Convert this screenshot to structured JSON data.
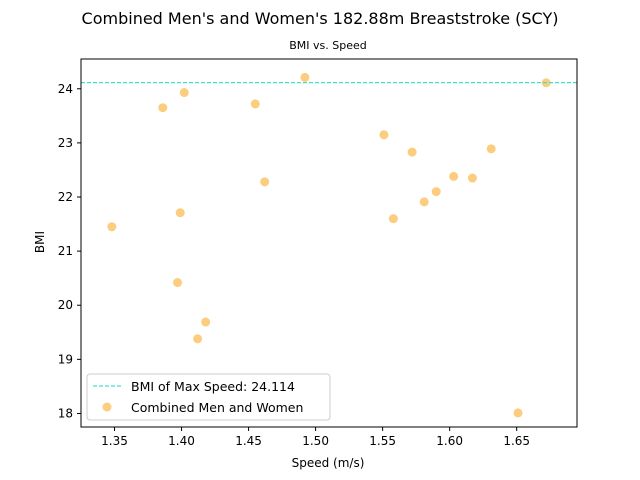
{
  "chart_data": {
    "type": "scatter",
    "title": "Combined Men's and Women's 182.88m Breaststroke (SCY)",
    "subtitle": "BMI vs. Speed",
    "xlabel": "Speed (m/s)",
    "ylabel": "BMI",
    "xlim": [
      1.325,
      1.695
    ],
    "ylim": [
      17.75,
      24.55
    ],
    "xticks": [
      "1.35",
      "1.40",
      "1.45",
      "1.50",
      "1.55",
      "1.60",
      "1.65"
    ],
    "yticks": [
      "18",
      "19",
      "20",
      "21",
      "22",
      "23",
      "24"
    ],
    "grid": false,
    "legend_position": "lower-left",
    "reference_line": {
      "name": "BMI of Max Speed: 24.114",
      "y": 24.114,
      "color": "#40e0d0",
      "style": "dashed"
    },
    "series": [
      {
        "name": "Combined Men and Women",
        "color": "#fbc15e",
        "points": [
          {
            "x": 1.348,
            "y": 21.45
          },
          {
            "x": 1.386,
            "y": 23.65
          },
          {
            "x": 1.397,
            "y": 20.42
          },
          {
            "x": 1.399,
            "y": 21.71
          },
          {
            "x": 1.402,
            "y": 23.93
          },
          {
            "x": 1.412,
            "y": 19.38
          },
          {
            "x": 1.418,
            "y": 19.69
          },
          {
            "x": 1.455,
            "y": 23.72
          },
          {
            "x": 1.462,
            "y": 22.28
          },
          {
            "x": 1.492,
            "y": 24.21
          },
          {
            "x": 1.551,
            "y": 23.15
          },
          {
            "x": 1.558,
            "y": 21.6
          },
          {
            "x": 1.572,
            "y": 22.83
          },
          {
            "x": 1.581,
            "y": 21.91
          },
          {
            "x": 1.59,
            "y": 22.1
          },
          {
            "x": 1.603,
            "y": 22.38
          },
          {
            "x": 1.617,
            "y": 22.35
          },
          {
            "x": 1.631,
            "y": 22.89
          },
          {
            "x": 1.651,
            "y": 18.01
          },
          {
            "x": 1.672,
            "y": 24.11
          }
        ]
      }
    ]
  }
}
